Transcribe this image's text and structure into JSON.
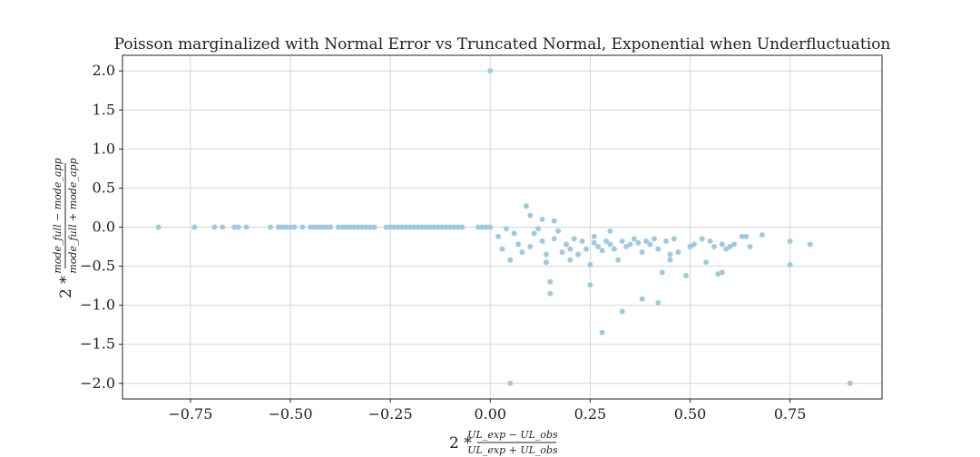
{
  "chart_data": {
    "type": "scatter",
    "title": "Poisson marginalized with Normal Error vs Truncated Normal, Exponential when Underfluctuation",
    "xlabel": {
      "prefix": "2 *",
      "numerator": "UL_exp − UL_obs",
      "denominator": "UL_exp + UL_obs"
    },
    "ylabel": {
      "prefix": "2 *",
      "numerator": "mode_full − mode_app",
      "denominator": "mode_full + mode_app"
    },
    "xlim": [
      -0.92,
      0.98
    ],
    "ylim": [
      -2.2,
      2.2
    ],
    "xticks": [
      -0.75,
      -0.5,
      -0.25,
      0.0,
      0.25,
      0.5,
      0.75
    ],
    "yticks": [
      -2.0,
      -1.5,
      -1.0,
      -0.5,
      0.0,
      0.5,
      1.0,
      1.5,
      2.0
    ],
    "xtick_labels": [
      "−0.75",
      "−0.50",
      "−0.25",
      "0.00",
      "0.25",
      "0.50",
      "0.75"
    ],
    "ytick_labels": [
      "−2.0",
      "−1.5",
      "−1.0",
      "−0.5",
      "0.0",
      "0.5",
      "1.0",
      "1.5",
      "2.0"
    ],
    "grid": true,
    "marker_color": "#9ecae1",
    "points": [
      [
        0.0,
        2.0
      ],
      [
        -0.83,
        0.0
      ],
      [
        -0.74,
        0.0
      ],
      [
        -0.69,
        0.0
      ],
      [
        -0.67,
        0.0
      ],
      [
        -0.64,
        0.0
      ],
      [
        -0.63,
        0.0
      ],
      [
        -0.61,
        0.0
      ],
      [
        -0.55,
        0.0
      ],
      [
        -0.53,
        0.0
      ],
      [
        -0.52,
        0.0
      ],
      [
        -0.51,
        0.0
      ],
      [
        -0.5,
        0.0
      ],
      [
        -0.49,
        0.0
      ],
      [
        -0.47,
        0.0
      ],
      [
        -0.45,
        0.0
      ],
      [
        -0.44,
        0.0
      ],
      [
        -0.43,
        0.0
      ],
      [
        -0.42,
        0.0
      ],
      [
        -0.41,
        0.0
      ],
      [
        -0.4,
        0.0
      ],
      [
        -0.38,
        0.0
      ],
      [
        -0.37,
        0.0
      ],
      [
        -0.36,
        0.0
      ],
      [
        -0.35,
        0.0
      ],
      [
        -0.34,
        0.0
      ],
      [
        -0.33,
        0.0
      ],
      [
        -0.32,
        0.0
      ],
      [
        -0.31,
        0.0
      ],
      [
        -0.3,
        0.0
      ],
      [
        -0.29,
        0.0
      ],
      [
        -0.26,
        0.0
      ],
      [
        -0.25,
        0.0
      ],
      [
        -0.24,
        0.0
      ],
      [
        -0.23,
        0.0
      ],
      [
        -0.22,
        0.0
      ],
      [
        -0.21,
        0.0
      ],
      [
        -0.2,
        0.0
      ],
      [
        -0.19,
        0.0
      ],
      [
        -0.18,
        0.0
      ],
      [
        -0.17,
        0.0
      ],
      [
        -0.16,
        0.0
      ],
      [
        -0.15,
        0.0
      ],
      [
        -0.14,
        0.0
      ],
      [
        -0.13,
        0.0
      ],
      [
        -0.12,
        0.0
      ],
      [
        -0.11,
        0.0
      ],
      [
        -0.1,
        0.0
      ],
      [
        -0.09,
        0.0
      ],
      [
        -0.08,
        0.0
      ],
      [
        -0.07,
        0.0
      ],
      [
        -0.03,
        0.0
      ],
      [
        -0.02,
        0.0
      ],
      [
        -0.01,
        0.0
      ],
      [
        0.0,
        0.0
      ],
      [
        0.05,
        -2.0
      ],
      [
        0.9,
        -2.0
      ],
      [
        0.02,
        -0.12
      ],
      [
        0.03,
        -0.28
      ],
      [
        0.04,
        -0.02
      ],
      [
        0.05,
        -0.42
      ],
      [
        0.06,
        -0.08
      ],
      [
        0.07,
        -0.22
      ],
      [
        0.08,
        -0.32
      ],
      [
        0.09,
        0.27
      ],
      [
        0.1,
        0.15
      ],
      [
        0.1,
        -0.25
      ],
      [
        0.11,
        -0.08
      ],
      [
        0.12,
        -0.02
      ],
      [
        0.13,
        0.1
      ],
      [
        0.13,
        -0.18
      ],
      [
        0.14,
        -0.35
      ],
      [
        0.14,
        -0.45
      ],
      [
        0.15,
        -0.85
      ],
      [
        0.15,
        -0.7
      ],
      [
        0.16,
        0.08
      ],
      [
        0.16,
        -0.15
      ],
      [
        0.17,
        -0.05
      ],
      [
        0.18,
        -0.32
      ],
      [
        0.19,
        -0.22
      ],
      [
        0.2,
        -0.28
      ],
      [
        0.2,
        -0.42
      ],
      [
        0.21,
        -0.15
      ],
      [
        0.22,
        -0.35
      ],
      [
        0.23,
        -0.18
      ],
      [
        0.24,
        -0.28
      ],
      [
        0.25,
        -0.48
      ],
      [
        0.25,
        -0.74
      ],
      [
        0.26,
        -0.12
      ],
      [
        0.26,
        -0.2
      ],
      [
        0.27,
        -0.25
      ],
      [
        0.28,
        -0.3
      ],
      [
        0.28,
        -1.35
      ],
      [
        0.29,
        -0.18
      ],
      [
        0.3,
        -0.05
      ],
      [
        0.3,
        -0.22
      ],
      [
        0.31,
        -0.28
      ],
      [
        0.32,
        -0.42
      ],
      [
        0.33,
        -0.18
      ],
      [
        0.33,
        -1.08
      ],
      [
        0.34,
        -0.25
      ],
      [
        0.35,
        -0.22
      ],
      [
        0.36,
        -0.15
      ],
      [
        0.37,
        -0.2
      ],
      [
        0.38,
        -0.32
      ],
      [
        0.38,
        -0.92
      ],
      [
        0.39,
        -0.18
      ],
      [
        0.4,
        -0.22
      ],
      [
        0.41,
        -0.15
      ],
      [
        0.42,
        -0.97
      ],
      [
        0.42,
        -0.28
      ],
      [
        0.43,
        -0.58
      ],
      [
        0.44,
        -0.18
      ],
      [
        0.45,
        -0.35
      ],
      [
        0.45,
        -0.42
      ],
      [
        0.46,
        -0.15
      ],
      [
        0.47,
        -0.32
      ],
      [
        0.49,
        -0.62
      ],
      [
        0.5,
        -0.25
      ],
      [
        0.51,
        -0.22
      ],
      [
        0.53,
        -0.15
      ],
      [
        0.54,
        -0.45
      ],
      [
        0.55,
        -0.18
      ],
      [
        0.56,
        -0.25
      ],
      [
        0.57,
        -0.6
      ],
      [
        0.58,
        -0.22
      ],
      [
        0.58,
        -0.58
      ],
      [
        0.59,
        -0.28
      ],
      [
        0.6,
        -0.25
      ],
      [
        0.61,
        -0.22
      ],
      [
        0.63,
        -0.12
      ],
      [
        0.64,
        -0.12
      ],
      [
        0.65,
        -0.25
      ],
      [
        0.68,
        -0.1
      ],
      [
        0.75,
        -0.18
      ],
      [
        0.75,
        -0.48
      ],
      [
        0.8,
        -0.22
      ]
    ]
  }
}
